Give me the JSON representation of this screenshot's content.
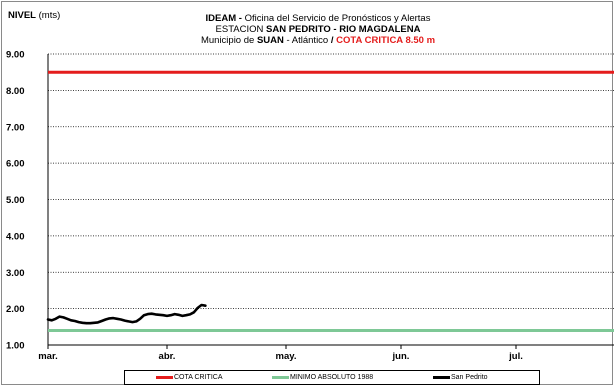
{
  "chart_data": {
    "type": "line",
    "title_line1_org": "IDEAM -",
    "title_line1_rest": " Oficina del Servicio de Pronósticos y Alertas",
    "title_line2_prefix": "ESTACION ",
    "title_line2_station": "SAN PEDRITO - RIO MAGDALENA",
    "title_line3_prefix": "Municipio de ",
    "title_line3_municipio": "SUAN",
    "title_line3_dept": " - Atlántico ",
    "title_line3_sep": " / ",
    "title_line3_cota": "COTA CRITICA 8.50 m",
    "ylabel_bold": "NIVEL",
    "ylabel_unit": " (mts)",
    "ylim": [
      1.0,
      9.0
    ],
    "y_ticks": [
      "1.00",
      "2.00",
      "3.00",
      "4.00",
      "5.00",
      "6.00",
      "7.00",
      "8.00",
      "9.00"
    ],
    "x_ticks": [
      "mar.",
      "abr.",
      "may.",
      "jun.",
      "jul."
    ],
    "grid": true,
    "legend_position": "bottom",
    "series": [
      {
        "name": "COTA CRITICA",
        "color": "#e41c1c",
        "value": 8.5
      },
      {
        "name": "MINIMO ABSOLUTO 1988",
        "color": "#7ec896",
        "value": 1.4
      },
      {
        "name": "San Pedrito",
        "color": "#000000",
        "points": [
          [
            0,
            1.7
          ],
          [
            1,
            1.68
          ],
          [
            2,
            1.72
          ],
          [
            3,
            1.78
          ],
          [
            4,
            1.76
          ],
          [
            5,
            1.72
          ],
          [
            6,
            1.68
          ],
          [
            7,
            1.66
          ],
          [
            8,
            1.63
          ],
          [
            9,
            1.61
          ],
          [
            10,
            1.6
          ],
          [
            11,
            1.6
          ],
          [
            12,
            1.61
          ],
          [
            13,
            1.62
          ],
          [
            14,
            1.66
          ],
          [
            15,
            1.7
          ],
          [
            16,
            1.73
          ],
          [
            17,
            1.74
          ],
          [
            18,
            1.72
          ],
          [
            19,
            1.7
          ],
          [
            20,
            1.67
          ],
          [
            21,
            1.65
          ],
          [
            22,
            1.63
          ],
          [
            23,
            1.65
          ],
          [
            24,
            1.72
          ],
          [
            25,
            1.82
          ],
          [
            26,
            1.85
          ],
          [
            27,
            1.86
          ],
          [
            28,
            1.84
          ],
          [
            29,
            1.83
          ],
          [
            30,
            1.82
          ],
          [
            31,
            1.8
          ],
          [
            32,
            1.82
          ],
          [
            33,
            1.85
          ],
          [
            34,
            1.83
          ],
          [
            35,
            1.8
          ],
          [
            36,
            1.82
          ],
          [
            37,
            1.84
          ],
          [
            38,
            1.9
          ],
          [
            39,
            2.02
          ],
          [
            40,
            2.1
          ],
          [
            41,
            2.08
          ]
        ]
      }
    ]
  }
}
